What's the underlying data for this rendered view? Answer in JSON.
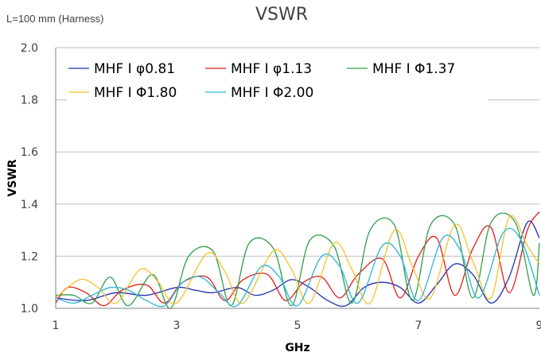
{
  "chart_data": {
    "type": "line",
    "title": "VSWR",
    "annotation": "L=100 mm (Harness)",
    "xlabel": "GHz",
    "ylabel": "VSWR",
    "xlim": [
      1,
      9
    ],
    "ylim": [
      1.0,
      2.0
    ],
    "xticks": [
      "1",
      "3",
      "5",
      "7",
      "9"
    ],
    "yticks": [
      "1.0",
      "1.2",
      "1.4",
      "1.6",
      "1.8",
      "2.0"
    ],
    "grid": "horizontal",
    "legend_position": "top",
    "series": [
      {
        "name": "MHF I φ0.81",
        "color": "#1f2fb0",
        "x": [
          1.0,
          1.5,
          2.0,
          2.5,
          3.0,
          3.3,
          3.6,
          4.0,
          4.3,
          4.6,
          4.9,
          5.2,
          5.5,
          5.8,
          6.1,
          6.4,
          6.7,
          7.0,
          7.3,
          7.6,
          7.9,
          8.2,
          8.5,
          8.8,
          9.0
        ],
        "y": [
          1.04,
          1.03,
          1.06,
          1.05,
          1.08,
          1.07,
          1.06,
          1.08,
          1.05,
          1.07,
          1.11,
          1.08,
          1.03,
          1.01,
          1.08,
          1.1,
          1.08,
          1.02,
          1.09,
          1.17,
          1.13,
          1.02,
          1.12,
          1.33,
          1.27
        ]
      },
      {
        "name": "MHF I φ1.13",
        "color": "#e21a1a",
        "x": [
          1.0,
          1.2,
          1.5,
          1.8,
          2.1,
          2.5,
          2.8,
          3.1,
          3.5,
          3.8,
          4.1,
          4.5,
          4.8,
          5.1,
          5.4,
          5.7,
          6.0,
          6.4,
          6.7,
          7.0,
          7.3,
          7.6,
          7.9,
          8.2,
          8.5,
          8.8,
          9.0
        ],
        "y": [
          1.02,
          1.08,
          1.06,
          1.01,
          1.07,
          1.09,
          1.02,
          1.1,
          1.12,
          1.03,
          1.11,
          1.13,
          1.03,
          1.1,
          1.12,
          1.04,
          1.13,
          1.19,
          1.04,
          1.2,
          1.27,
          1.05,
          1.23,
          1.31,
          1.06,
          1.3,
          1.37
        ]
      },
      {
        "name": "MHF I Φ1.37",
        "color": "#2e9e4a",
        "x": [
          1.0,
          1.3,
          1.6,
          1.9,
          2.2,
          2.6,
          2.9,
          3.2,
          3.6,
          3.9,
          4.2,
          4.6,
          4.9,
          5.2,
          5.6,
          5.9,
          6.2,
          6.6,
          6.9,
          7.2,
          7.6,
          7.9,
          8.2,
          8.6,
          8.9,
          9.0
        ],
        "y": [
          1.05,
          1.05,
          1.02,
          1.12,
          1.01,
          1.13,
          1.0,
          1.2,
          1.22,
          1.01,
          1.25,
          1.23,
          1.01,
          1.26,
          1.24,
          1.02,
          1.3,
          1.32,
          1.03,
          1.32,
          1.32,
          1.04,
          1.33,
          1.33,
          1.05,
          1.25
        ]
      },
      {
        "name": "MHF I Φ1.80",
        "color": "#f5c22b",
        "x": [
          1.0,
          1.4,
          1.7,
          2.0,
          2.4,
          2.7,
          3.0,
          3.5,
          3.8,
          4.1,
          4.6,
          4.9,
          5.2,
          5.6,
          5.9,
          6.2,
          6.6,
          6.9,
          7.2,
          7.6,
          7.9,
          8.2,
          8.5,
          8.8,
          9.0
        ],
        "y": [
          1.04,
          1.11,
          1.08,
          1.02,
          1.15,
          1.1,
          1.02,
          1.21,
          1.14,
          1.02,
          1.22,
          1.15,
          1.02,
          1.25,
          1.15,
          1.02,
          1.3,
          1.16,
          1.04,
          1.32,
          1.18,
          1.04,
          1.35,
          1.24,
          1.17
        ]
      },
      {
        "name": "MHF I Φ2.00",
        "color": "#2ab5d8",
        "x": [
          1.0,
          1.3,
          1.6,
          1.9,
          2.2,
          2.5,
          2.8,
          3.1,
          3.4,
          3.7,
          4.0,
          4.4,
          4.7,
          5.0,
          5.4,
          5.7,
          6.0,
          6.4,
          6.7,
          7.0,
          7.4,
          7.7,
          8.0,
          8.4,
          8.7,
          9.0
        ],
        "y": [
          1.04,
          1.02,
          1.05,
          1.08,
          1.07,
          1.03,
          1.01,
          1.1,
          1.12,
          1.06,
          1.01,
          1.16,
          1.12,
          1.01,
          1.2,
          1.16,
          1.02,
          1.24,
          1.2,
          1.03,
          1.27,
          1.22,
          1.04,
          1.29,
          1.26,
          1.05
        ]
      }
    ]
  }
}
